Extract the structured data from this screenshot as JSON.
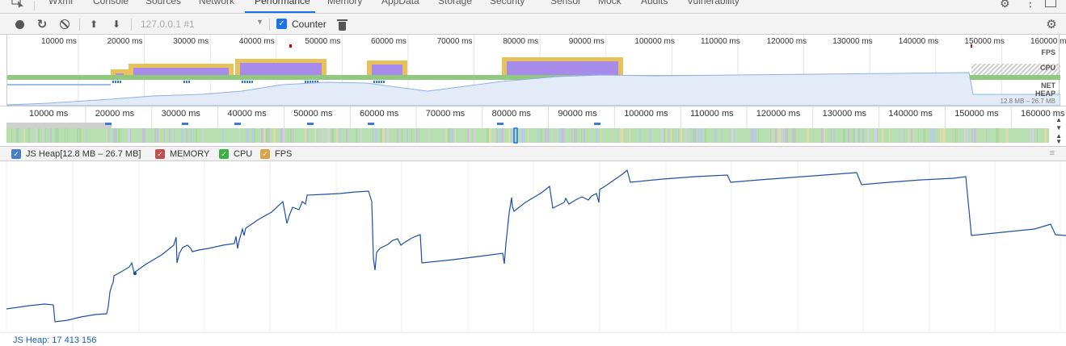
{
  "tabs": [
    {
      "label": "Wxml"
    },
    {
      "label": "Console"
    },
    {
      "label": "Sources"
    },
    {
      "label": "Network"
    },
    {
      "label": "Performance"
    },
    {
      "label": "Memory"
    },
    {
      "label": "AppData"
    },
    {
      "label": "Storage"
    },
    {
      "label": "Security"
    },
    {
      "label": "Sensor"
    },
    {
      "label": "Mock"
    },
    {
      "label": "Audits"
    },
    {
      "label": "Vulnerability"
    }
  ],
  "active_tab": "Performance",
  "toolbar": {
    "target": "127.0.0.1 #1",
    "counter_label": "Counter",
    "counter_checked": true
  },
  "overview": {
    "ticks": [
      "10000 ms",
      "20000 ms",
      "30000 ms",
      "40000 ms",
      "50000 ms",
      "60000 ms",
      "70000 ms",
      "80000 ms",
      "90000 ms",
      "100000 ms",
      "110000 ms",
      "120000 ms",
      "130000 ms",
      "140000 ms",
      "150000 ms",
      "160000 ms"
    ],
    "track_labels": {
      "fps": "FPS",
      "cpu": "CPU",
      "net": "NET",
      "heap": "HEAP"
    },
    "heap_range": "12.8 MB – 26.7 MB"
  },
  "ruler": {
    "ticks": [
      "10000 ms",
      "20000 ms",
      "30000 ms",
      "40000 ms",
      "50000 ms",
      "60000 ms",
      "70000 ms",
      "80000 ms",
      "90000 ms",
      "100000 ms",
      "110000 ms",
      "120000 ms",
      "130000 ms",
      "140000 ms",
      "150000 ms",
      "160000 ms"
    ]
  },
  "legend": {
    "items": [
      {
        "label": "JS Heap[12.8 MB – 26.7 MB]",
        "color": "#4a7cc9",
        "checked": true
      },
      {
        "label": "MEMORY",
        "color": "#c0504d",
        "checked": true
      },
      {
        "label": "CPU",
        "color": "#3cb043",
        "checked": true
      },
      {
        "label": "FPS",
        "color": "#d9a349",
        "checked": true
      }
    ]
  },
  "status": {
    "text": "JS Heap: 17 413 156"
  },
  "colors": {
    "accent": "#1a73e8",
    "heap_line": "#1f4fa8",
    "cpu_purple": "#a78bea",
    "cpu_yellow": "#e8c15a",
    "cpu_green": "#6bb05a"
  }
}
